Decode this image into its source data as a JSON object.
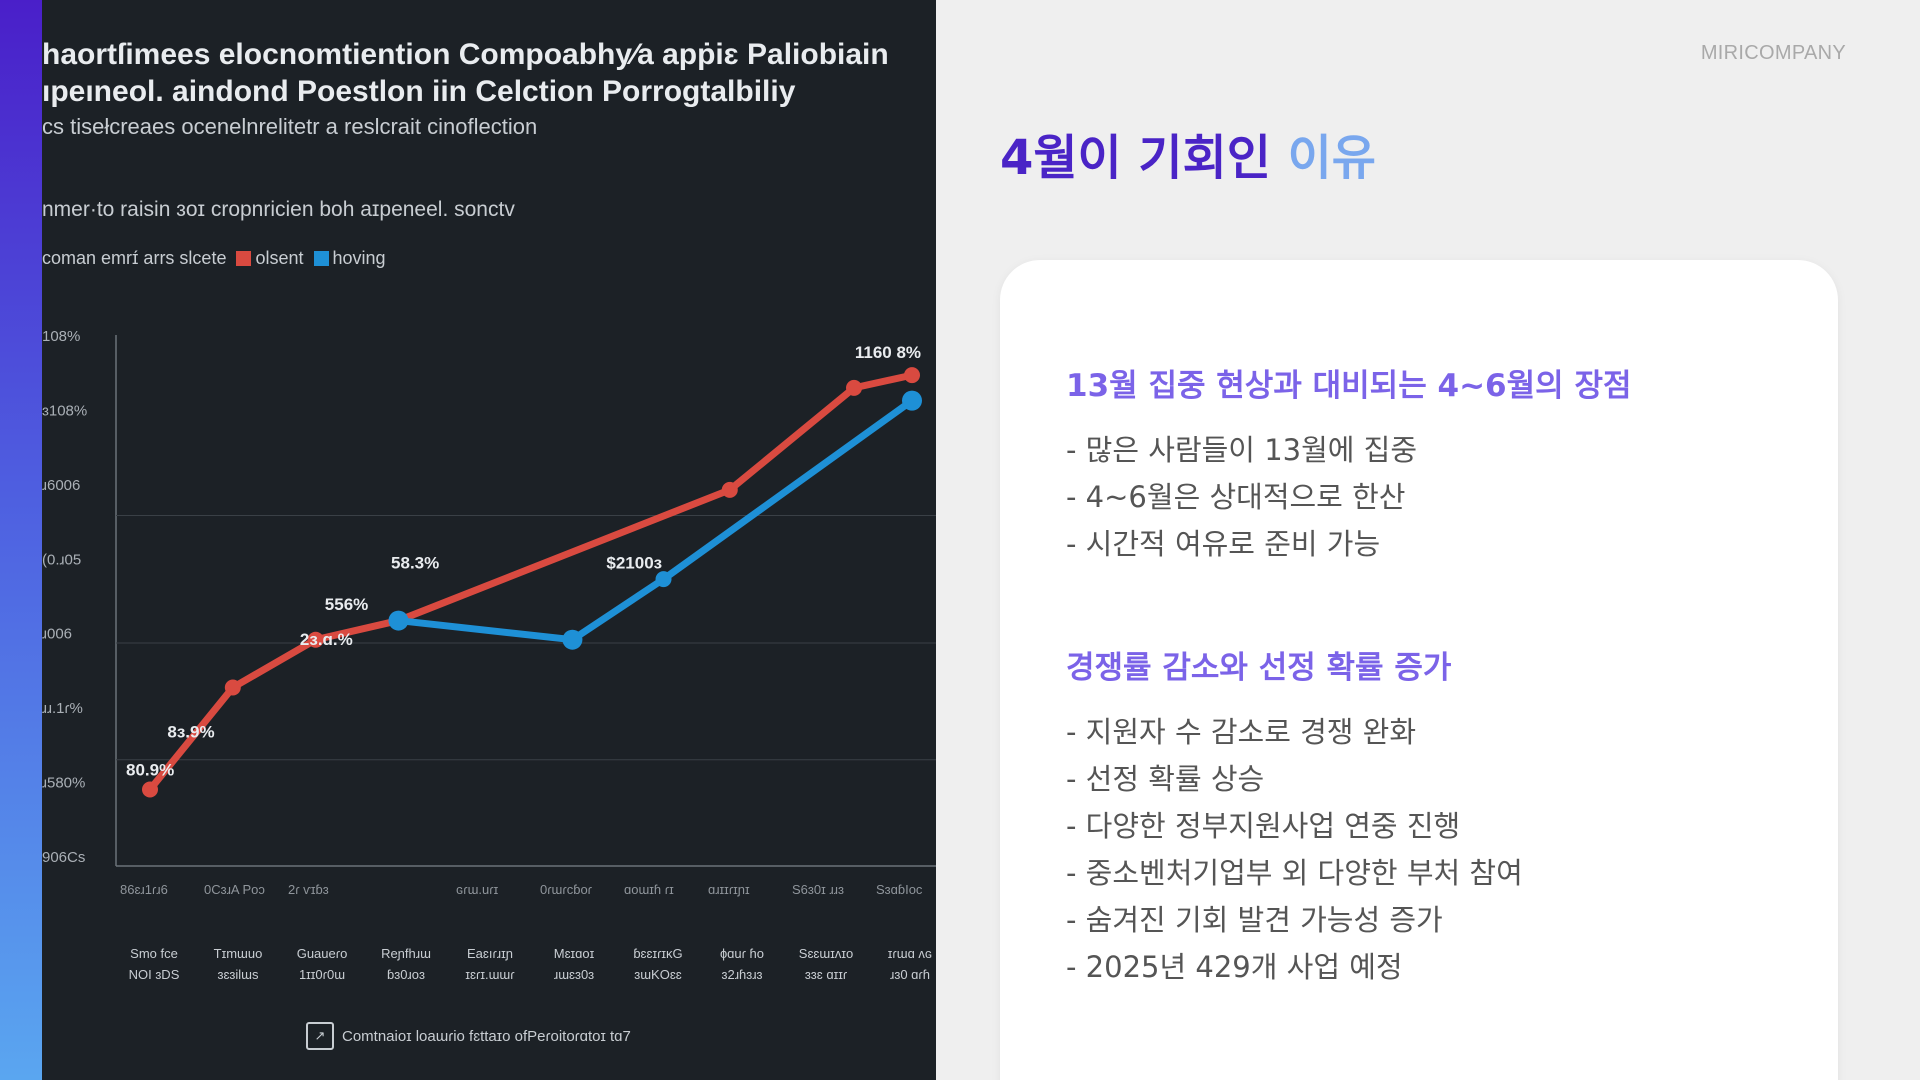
{
  "chart_data": {
    "type": "line",
    "title_line1": "haortſimees elocnomtiention Compoabhy⁄a apṗiɛ Paliobiain",
    "title_line2": "ıpeıneol. aindond Poestlon iin Celction Porrogtalbiliy",
    "subtitle": "cs tisełcreaes ocenelnrelitetr a reslcrait cinoflection",
    "note": "nmer·to raisin ɜoɪ cropnricien boh aɪpeneel. sonctv",
    "legend_label": "coman emrɪ́ arrs slcete",
    "series": [
      {
        "name": "olsent",
        "color": "#d94a40",
        "x": [
          0,
          1,
          2,
          3,
          7,
          8.5,
          9.2
        ],
        "y": [
          32,
          48,
          55.5,
          58.5,
          79,
          95,
          97
        ]
      },
      {
        "name": "hoving",
        "color": "#1e90d6",
        "x": [
          3,
          5.1,
          6.2,
          9.2
        ],
        "y": [
          58.5,
          55.5,
          65,
          93
        ]
      }
    ],
    "data_labels": [
      {
        "text": "80.9%",
        "x": 0,
        "y": 32
      },
      {
        "text": "8ɜ.9%",
        "x": 0.5,
        "y": 38
      },
      {
        "text": "2ɜ.ɑ.%",
        "x": 2.1,
        "y": 52.5
      },
      {
        "text": "556%",
        "x": 2.4,
        "y": 58
      },
      {
        "text": "58.3%",
        "x": 3.2,
        "y": 64.5
      },
      {
        "text": "$2100ɜ",
        "x": 5.8,
        "y": 64.5
      },
      {
        "text": "1160 8%",
        "x": 8.8,
        "y": 97.5
      }
    ],
    "y_tick_labels": [
      "108%",
      "ɜ108%",
      "ɹ6006",
      "(0.ɹ05",
      "ɹ006",
      "ɹɹ.1ɾ%",
      "ɹ580%",
      "906Cs"
    ],
    "x_tick_labels": [
      "86ɛɹ1ɾɹ6",
      "0CɜɹA Poɔ",
      "2ɾ ⱱɪɓɜ",
      "",
      "ɢɾɯ.uɾɪ",
      "0ɾɯɾcɓoɾ",
      "ɑoɯɪɦ ɾɪ",
      "ɑɹɪɪɾɪɲɪ",
      "S6ɜ0ɪ ɹɹɜ",
      "SɜɑɓIoc"
    ],
    "x_category_labels": [
      [
        "Smo fce",
        "NOI ɜDS"
      ],
      [
        "Tɪmɯuo",
        "ɜɛɜilɯs"
      ],
      [
        "Guaueɾo",
        "1ɪɪ0ɾ0ɯ"
      ],
      [
        "Reɲfhɹɯ",
        "ɓɜ0ɹoɜ"
      ],
      [
        "Eaɛıɾɹɪɲ",
        "ɪɛɾɪ.ɯɯɾ"
      ],
      [
        "Mɛɪɑoɪ",
        "ɹɯɛɜ0ɜ"
      ],
      [
        "ɓɛɛɪɾɪκG",
        "ɜɯKOɛɛ"
      ],
      [
        "ɸɑuɾ ɦo",
        "ɜ2ɹɦɜɹɜ"
      ],
      [
        "Sɛɛɯɪʌɪo",
        "ɜɜɛ ɑɪɪɾ"
      ],
      [
        "ɪɾɯɑ ʌɢ",
        "ɹɜ0 ɑɾɦ"
      ]
    ],
    "footer": "Comtnaioɪ loaɯɾio fɛttaɪo ofPeɾoitoɾɑtoɪ tɑ7"
  },
  "brand": "MIRICOMPANY",
  "title": {
    "part1": "4월이 기회인 ",
    "part2": "이유"
  },
  "sections": [
    {
      "heading": "13월 집중 현상과 대비되는 4~6월의 장점",
      "items": [
        "- 많은 사람들이 13월에 집중",
        "- 4~6월은 상대적으로 한산",
        "- 시간적 여유로 준비 가능"
      ]
    },
    {
      "heading": "경쟁률 감소와 선정 확률 증가",
      "items": [
        "- 지원자 수 감소로 경쟁 완화",
        "- 선정 확률 상승",
        "- 다양한 정부지원사업 연중 진행",
        "- 중소벤처기업부 외 다양한 부처 참여",
        "- 숨겨진 기회 발견 가능성 증가",
        "- 2025년 429개 사업 예정"
      ]
    }
  ]
}
